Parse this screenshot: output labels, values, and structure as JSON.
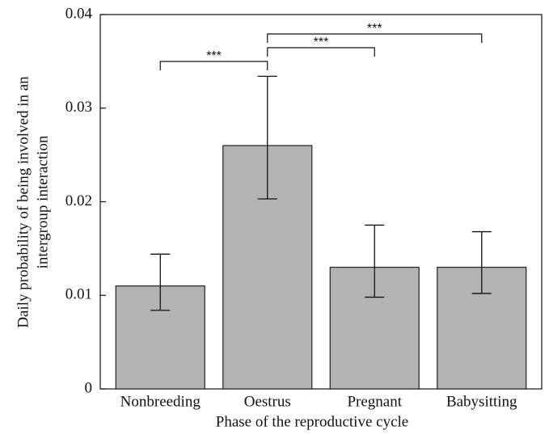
{
  "chart_data": {
    "type": "bar",
    "xlabel": "Phase of the reproductive cycle",
    "ylabel": [
      "Daily probability of being involved in an",
      "intergroup interaction"
    ],
    "categories": [
      "Nonbreeding",
      "Oestrus",
      "Pregnant",
      "Babysitting"
    ],
    "values": [
      0.011,
      0.026,
      0.013,
      0.013
    ],
    "error_low": [
      0.0084,
      0.0203,
      0.0098,
      0.0102
    ],
    "error_high": [
      0.0144,
      0.0334,
      0.0175,
      0.0168
    ],
    "color": "#b3b3b3",
    "ylim": [
      0,
      0.04
    ],
    "yticks": [
      0,
      0.01,
      0.02,
      0.03,
      0.04
    ],
    "comparisons": [
      {
        "from": "Nonbreeding",
        "to": "Oestrus",
        "label": "***"
      },
      {
        "from": "Oestrus",
        "to": "Pregnant",
        "label": "***"
      },
      {
        "from": "Oestrus",
        "to": "Babysitting",
        "label": "***"
      }
    ]
  }
}
